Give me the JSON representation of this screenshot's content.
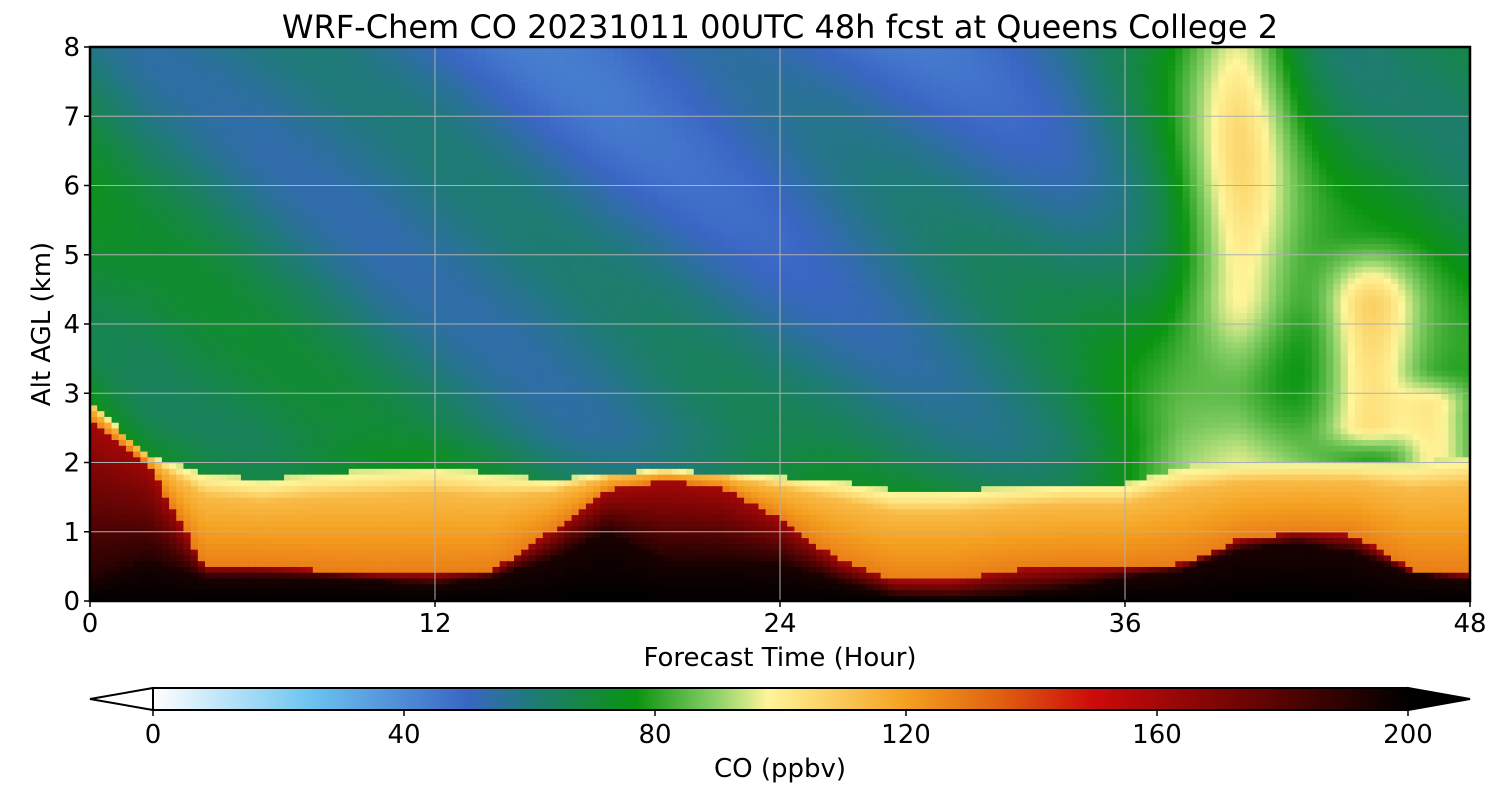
{
  "chart_data": {
    "type": "heatmap",
    "title": "WRF-Chem CO  20231011 00UTC 48h fcst at Queens College 2",
    "xlabel": "Forecast Time (Hour)",
    "ylabel": "Alt AGL (km)",
    "xlim": [
      0,
      48
    ],
    "ylim": [
      0,
      8
    ],
    "x_ticks": [
      0,
      12,
      24,
      36,
      48
    ],
    "y_ticks": [
      0,
      1,
      2,
      3,
      4,
      5,
      6,
      7,
      8
    ],
    "grid": true,
    "colorbar": {
      "label": "CO  (ppbv)",
      "min": 0,
      "max": 200,
      "ticks": [
        0,
        40,
        80,
        120,
        160,
        200
      ],
      "extend": "both",
      "stops": [
        {
          "v": 0,
          "color": "#ffffff"
        },
        {
          "v": 25,
          "color": "#6cc4f0"
        },
        {
          "v": 50,
          "color": "#3a66c4"
        },
        {
          "v": 60,
          "color": "#1f7a7a"
        },
        {
          "v": 77,
          "color": "#0a9410"
        },
        {
          "v": 90,
          "color": "#8fd26a"
        },
        {
          "v": 98,
          "color": "#fff59a"
        },
        {
          "v": 120,
          "color": "#f5a020"
        },
        {
          "v": 135,
          "color": "#e06010"
        },
        {
          "v": 150,
          "color": "#cc0a0a"
        },
        {
          "v": 175,
          "color": "#6a0404"
        },
        {
          "v": 200,
          "color": "#000000"
        }
      ]
    },
    "z_units": "ppbv",
    "times": [
      0,
      2,
      4,
      6,
      8,
      10,
      12,
      14,
      16,
      18,
      20,
      22,
      24,
      26,
      28,
      30,
      32,
      34,
      36,
      38,
      40,
      42,
      44,
      46,
      48
    ],
    "surface_black_top_km": [
      0.3,
      0.6,
      0.35,
      0.35,
      0.35,
      0.3,
      0.25,
      0.35,
      0.6,
      1.0,
      0.6,
      0.6,
      0.55,
      0.3,
      0.08,
      0.05,
      0.1,
      0.2,
      0.35,
      0.45,
      0.75,
      0.85,
      0.7,
      0.4,
      0.3
    ],
    "red_top_km": [
      2.6,
      2.0,
      0.5,
      0.5,
      0.45,
      0.4,
      0.4,
      0.45,
      1.0,
      1.6,
      1.75,
      1.65,
      1.2,
      0.6,
      0.3,
      0.3,
      0.45,
      0.5,
      0.5,
      0.55,
      0.9,
      1.0,
      0.95,
      0.45,
      0.4
    ],
    "boundary_layer_top_km": [
      2.9,
      2.1,
      1.85,
      1.75,
      1.85,
      1.9,
      1.95,
      1.85,
      1.75,
      1.85,
      1.9,
      1.85,
      1.8,
      1.75,
      1.6,
      1.6,
      1.65,
      1.7,
      1.7,
      1.95,
      2.0,
      2.0,
      2.0,
      2.0,
      2.1
    ],
    "free_troposphere_ppbv": [
      75,
      73,
      72,
      70,
      68,
      66,
      65,
      64,
      63,
      62,
      62,
      62,
      62,
      63,
      64,
      65,
      66,
      68,
      74,
      82,
      86,
      82,
      80,
      80,
      78
    ]
  }
}
